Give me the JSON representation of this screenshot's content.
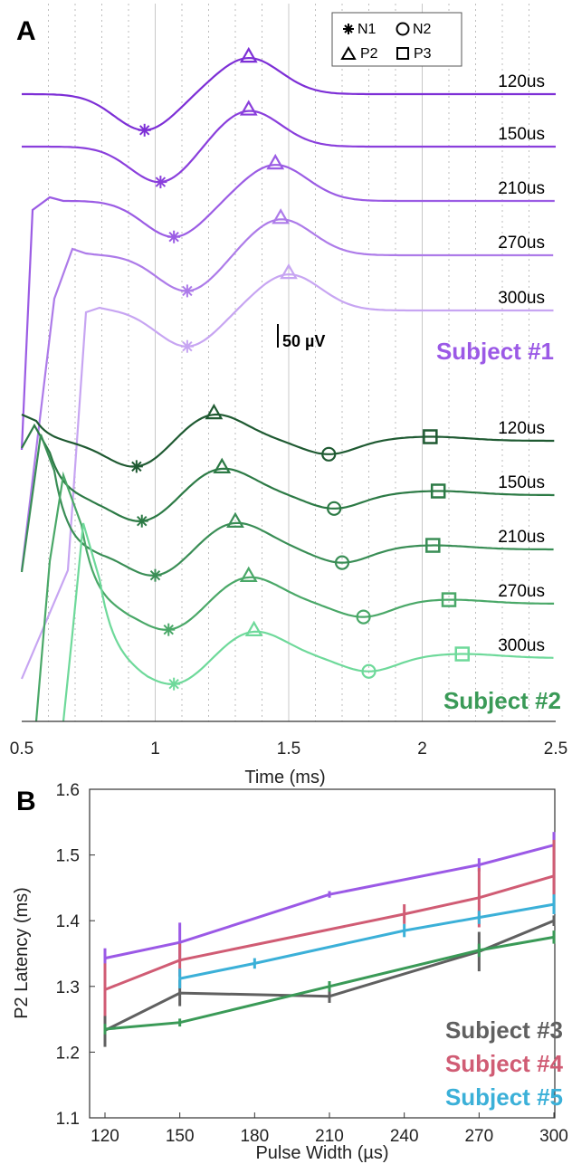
{
  "panels": {
    "a_letter": "A",
    "b_letter": "B"
  },
  "panel_a": {
    "legend": [
      {
        "marker": "asterisk",
        "label": "N1"
      },
      {
        "marker": "circle",
        "label": "N2"
      },
      {
        "marker": "triangle",
        "label": "P2"
      },
      {
        "marker": "square",
        "label": "P3"
      }
    ],
    "scale_bar_label": "50 µV",
    "subject_labels": [
      {
        "text": "Subject #1",
        "color": "#9b59e6"
      },
      {
        "text": "Subject #2",
        "color": "#3a9a57"
      }
    ]
  },
  "chart_data": [
    {
      "type": "line",
      "panel": "A",
      "xlabel": "Time (ms)",
      "ylabel": "",
      "xlim": [
        0.5,
        2.5
      ],
      "xticks": [
        "0.5",
        "1",
        "1.5",
        "2",
        "2.5"
      ],
      "grid": "vertical dotted every 0.1 ms, solid every 0.5 ms",
      "subjects": [
        {
          "name": "Subject #1",
          "traces": [
            {
              "label": "120us",
              "color": "#7d2fd6",
              "N1": 0.96,
              "P2": 1.35
            },
            {
              "label": "150us",
              "color": "#8a3fdc",
              "N1": 1.02,
              "P2": 1.35
            },
            {
              "label": "210us",
              "color": "#9b5ce4",
              "N1": 1.07,
              "P2": 1.45
            },
            {
              "label": "270us",
              "color": "#ad7be9",
              "N1": 1.12,
              "P2": 1.47
            },
            {
              "label": "300us",
              "color": "#c7a5f2",
              "N1": 1.12,
              "P2": 1.5
            }
          ]
        },
        {
          "name": "Subject #2",
          "traces": [
            {
              "label": "120us",
              "color": "#1f5a32",
              "N1": 0.93,
              "P2": 1.22,
              "N2": 1.65,
              "P3": 2.03
            },
            {
              "label": "150us",
              "color": "#2c7a45",
              "N1": 0.95,
              "P2": 1.25,
              "N2": 1.67,
              "P3": 2.06
            },
            {
              "label": "210us",
              "color": "#3a8e56",
              "N1": 1.0,
              "P2": 1.3,
              "N2": 1.7,
              "P3": 2.04
            },
            {
              "label": "270us",
              "color": "#4aa868",
              "N1": 1.05,
              "P2": 1.35,
              "N2": 1.78,
              "P3": 2.1
            },
            {
              "label": "300us",
              "color": "#6ed99a",
              "N1": 1.07,
              "P2": 1.37,
              "N2": 1.8,
              "P3": 2.15
            }
          ]
        }
      ]
    },
    {
      "type": "line",
      "panel": "B",
      "xlabel": "Pulse Width (µs)",
      "ylabel": "P2 Latency (ms)",
      "xlim": [
        120,
        300
      ],
      "ylim": [
        1.1,
        1.6
      ],
      "xticks": [
        120,
        150,
        180,
        210,
        240,
        270,
        300
      ],
      "yticks": [
        "1.1",
        "1.2",
        "1.3",
        "1.4",
        "1.5",
        "1.6"
      ],
      "grid": false,
      "legend_placement": "bottom-right",
      "series": [
        {
          "name": "",
          "color": "#9b59e6",
          "x": [
            120,
            150,
            210,
            270,
            300
          ],
          "y": [
            1.343,
            1.367,
            1.44,
            1.485,
            1.515
          ],
          "err": [
            0.015,
            0.03,
            0.005,
            0.01,
            0.02
          ]
        },
        {
          "name": "Subject #3",
          "color": "#606060",
          "x": [
            120,
            150,
            210,
            270,
            300
          ],
          "y": [
            1.233,
            1.29,
            1.285,
            1.353,
            1.4
          ],
          "err": [
            0.025,
            0.02,
            0.01,
            0.03,
            0.008
          ]
        },
        {
          "name": "Subject #4",
          "color": "#d05c74",
          "x": [
            120,
            150,
            240,
            270,
            300
          ],
          "y": [
            1.295,
            1.34,
            1.41,
            1.435,
            1.468
          ],
          "err": [
            0.04,
            0.025,
            0.015,
            0.045,
            0.055
          ]
        },
        {
          "name": "Subject #5",
          "color": "#3bb0d8",
          "x": [
            150,
            180,
            240,
            270,
            300
          ],
          "y": [
            1.312,
            1.335,
            1.385,
            1.405,
            1.425
          ],
          "err": [
            0.015,
            0.008,
            0.01,
            0.01,
            0.015
          ]
        },
        {
          "name": "",
          "color": "#3a9a57",
          "x": [
            120,
            150,
            210,
            270,
            300
          ],
          "y": [
            1.235,
            1.245,
            1.3,
            1.355,
            1.375
          ],
          "err": [
            0.008,
            0.006,
            0.008,
            0.01,
            0.01
          ]
        }
      ]
    }
  ]
}
